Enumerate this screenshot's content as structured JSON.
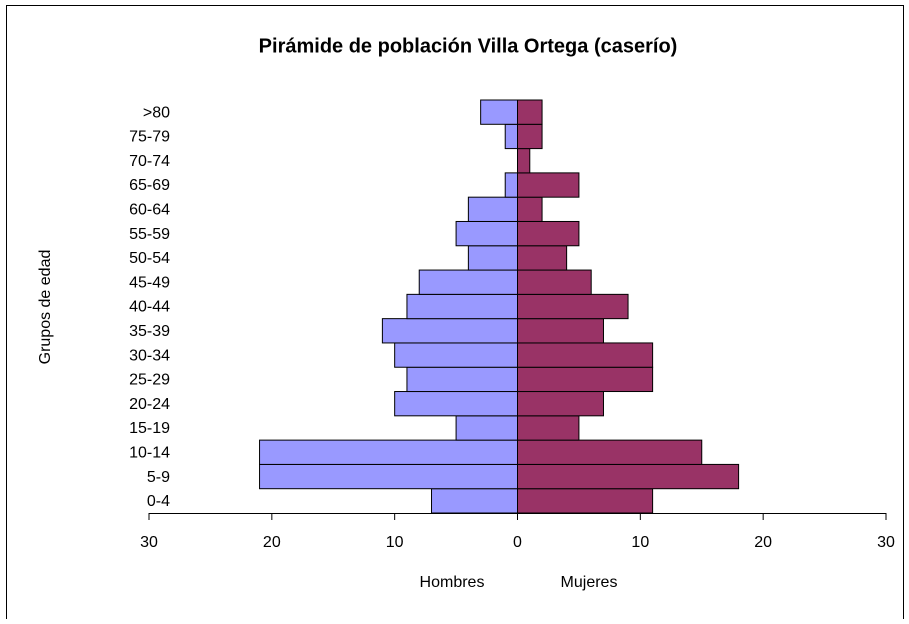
{
  "chart_data": {
    "type": "pyramid",
    "title": "Pirámide de población Villa Ortega (caserío)",
    "y_label": "Grupos de edad",
    "categories": [
      "0-4",
      "5-9",
      "10-14",
      "15-19",
      "20-24",
      "25-29",
      "30-34",
      "35-39",
      "40-44",
      "45-49",
      "50-54",
      "55-59",
      "60-64",
      "65-69",
      "70-74",
      "75-79",
      ">80"
    ],
    "series": [
      {
        "name": "Hombres",
        "color": "#9999ff",
        "values": [
          -7,
          -21,
          -21,
          -5,
          -10,
          -9,
          -10,
          -11,
          -9,
          -8,
          -4,
          -5,
          -4,
          -1,
          0,
          -1,
          -3
        ]
      },
      {
        "name": "Mujeres",
        "color": "#993366",
        "values": [
          11,
          18,
          15,
          5,
          7,
          11,
          11,
          7,
          9,
          6,
          4,
          5,
          2,
          5,
          1,
          2,
          2
        ]
      }
    ],
    "xlim": [
      -30,
      30
    ],
    "xticks": [
      {
        "value": -30,
        "label": "30"
      },
      {
        "value": -20,
        "label": "20"
      },
      {
        "value": -10,
        "label": "10"
      },
      0,
      10,
      20,
      30
    ]
  }
}
